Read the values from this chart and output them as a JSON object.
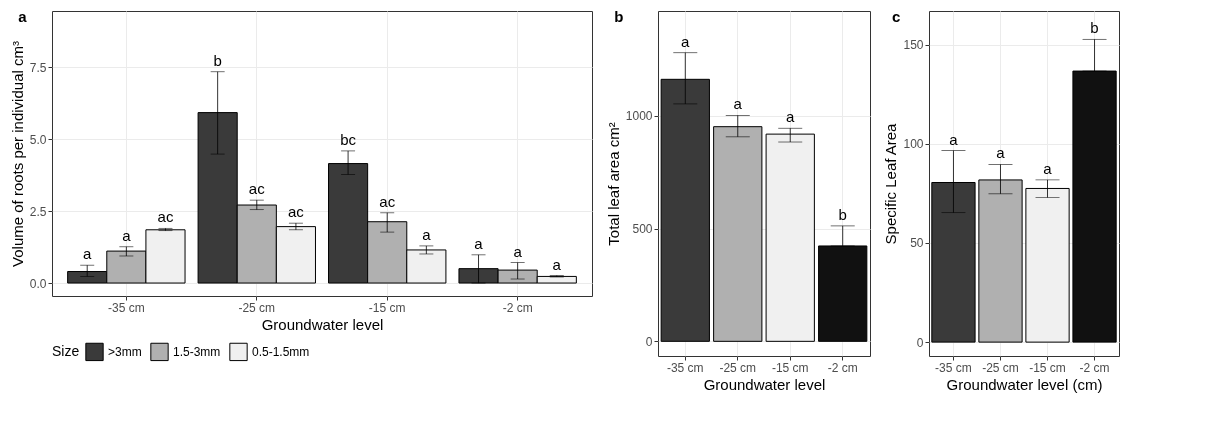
{
  "chart_data": [
    {
      "type": "bar",
      "title": "a",
      "xlabel": "Groundwater level",
      "ylabel": "Volume of roots per individual cm³",
      "categories": [
        "-35 cm",
        "-25 cm",
        "-15 cm",
        "-2 cm"
      ],
      "legend_title": "Size",
      "legend": "bottom",
      "grid": true,
      "ylim": [
        -0.45,
        9.45
      ],
      "yticks": [
        {
          "value": 0,
          "label": "0.0"
        },
        7.5,
        {
          "value": 5,
          "label": "5.0"
        },
        2.5
      ],
      "series": [
        {
          "name": ">3mm",
          "color": "#3a3a3a",
          "values": [
            0.4,
            5.92,
            4.15,
            0.5
          ],
          "errors": [
            [
              0.23,
              0.62
            ],
            [
              4.48,
              7.34
            ],
            [
              3.77,
              4.59
            ],
            [
              0.0,
              0.98
            ]
          ],
          "value_labels": [
            "a",
            "b",
            "bc",
            "a"
          ]
        },
        {
          "name": "1.5-3mm",
          "color": "#b0b0b0",
          "values": [
            1.11,
            2.71,
            2.13,
            0.45
          ],
          "errors": [
            [
              0.94,
              1.26
            ],
            [
              2.55,
              2.88
            ],
            [
              1.77,
              2.44
            ],
            [
              0.14,
              0.71
            ]
          ],
          "value_labels": [
            "a",
            "ac",
            "ac",
            "a"
          ]
        },
        {
          "name": "0.5-1.5mm",
          "color": "#f0f0f0",
          "values": [
            1.85,
            1.96,
            1.15,
            0.23
          ],
          "errors": [
            [
              1.82,
              1.9
            ],
            [
              1.85,
              2.08
            ],
            [
              1.01,
              1.29
            ],
            [
              0.21,
              0.26
            ]
          ],
          "value_labels": [
            "ac",
            "ac",
            "a",
            "a"
          ]
        }
      ]
    },
    {
      "type": "bar",
      "title": "b",
      "xlabel": "Groundwater level",
      "ylabel": "Total leaf area cm²",
      "categories": [
        "-35 cm",
        "-25 cm",
        "-15 cm",
        "-2 cm"
      ],
      "grid": true,
      "ylim": [
        -65,
        1465
      ],
      "yticks": [
        0,
        500,
        1000
      ],
      "values": [
        1162,
        952,
        919,
        423
      ],
      "colors": [
        "#3a3a3a",
        "#b0b0b0",
        "#f0f0f0",
        "#111111"
      ],
      "errors": [
        [
          1053,
          1280
        ],
        [
          907,
          1002
        ],
        [
          884,
          945
        ],
        [
          423,
          512
        ]
      ],
      "value_labels": [
        "a",
        "a",
        "a",
        "b"
      ]
    },
    {
      "type": "bar",
      "title": "c",
      "xlabel": "Groundwater level (cm)",
      "ylabel": "Specific Leaf Area",
      "categories": [
        "-35 cm",
        "-25 cm",
        "-15 cm",
        "-2 cm"
      ],
      "grid": true,
      "ylim": [
        -7,
        167
      ],
      "yticks": [
        0,
        50,
        100,
        150
      ],
      "values": [
        80.5,
        81.8,
        77.5,
        136.7
      ],
      "colors": [
        "#3a3a3a",
        "#b0b0b0",
        "#f0f0f0",
        "#111111"
      ],
      "errors": [
        [
          65.3,
          96.6
        ],
        [
          74.8,
          89.6
        ],
        [
          72.9,
          81.8
        ],
        [
          136.7,
          152.7
        ]
      ],
      "value_labels": [
        "a",
        "a",
        "a",
        "b"
      ]
    }
  ]
}
